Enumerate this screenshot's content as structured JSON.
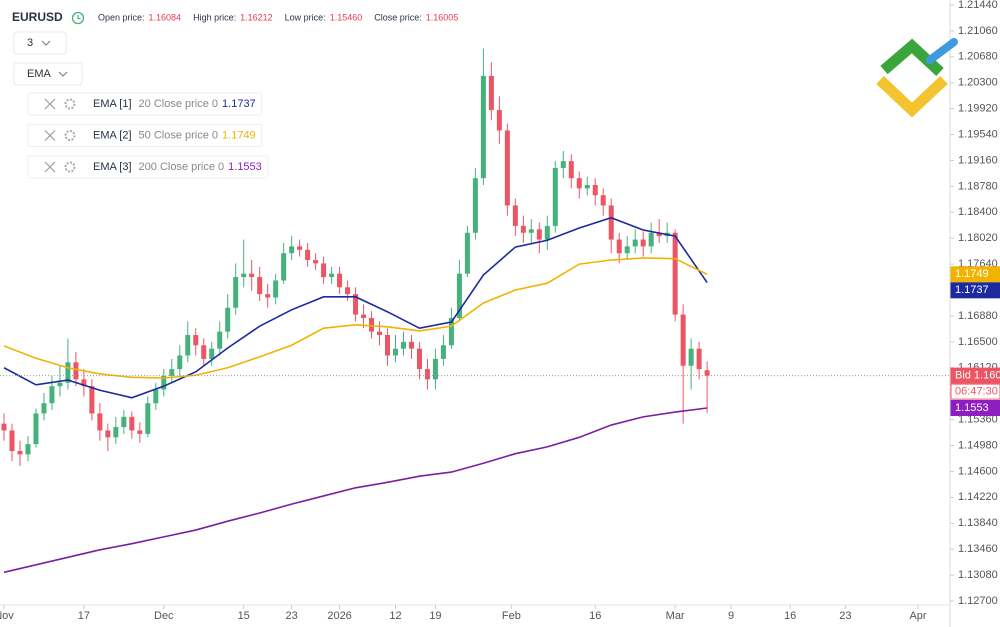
{
  "header": {
    "symbol": "EURUSD",
    "items": [
      {
        "label": "Open price:",
        "value": "1.16084"
      },
      {
        "label": "High price:",
        "value": "1.16212"
      },
      {
        "label": "Low price:",
        "value": "1.15460"
      },
      {
        "label": "Close price:",
        "value": "1.16005"
      }
    ]
  },
  "controls": {
    "interval": "3",
    "indicator": "EMA"
  },
  "chart_data": {
    "type": "candlestick",
    "up_color": "#45b27c",
    "down_color": "#ec5564",
    "xlim": [
      -0.5,
      118.4
    ],
    "ylim": [
      1.12641,
      1.21513
    ],
    "grid": false,
    "xticks": [
      {
        "value": 0,
        "label": "Nov"
      },
      {
        "value": 10,
        "label": "17"
      },
      {
        "value": 20,
        "label": "Dec"
      },
      {
        "value": 30,
        "label": "15"
      },
      {
        "value": 36,
        "label": "23"
      },
      {
        "value": 42,
        "label": "2026"
      },
      {
        "value": 49,
        "label": "12"
      },
      {
        "value": 54,
        "label": "19"
      },
      {
        "value": 63.5,
        "label": "Feb"
      },
      {
        "value": 74,
        "label": "16"
      },
      {
        "value": 84,
        "label": "Mar"
      },
      {
        "value": 91,
        "label": "9"
      },
      {
        "value": 98.4,
        "label": "16"
      },
      {
        "value": 105.3,
        "label": "23"
      },
      {
        "value": 114.4,
        "label": "Apr"
      }
    ],
    "yticks": [
      {
        "value": 1.2144,
        "label": "1.21440"
      },
      {
        "value": 1.2106,
        "label": "1.21060"
      },
      {
        "value": 1.2068,
        "label": "1.20680"
      },
      {
        "value": 1.203,
        "label": "1.20300"
      },
      {
        "value": 1.1992,
        "label": "1.19920"
      },
      {
        "value": 1.1954,
        "label": "1.19540"
      },
      {
        "value": 1.1916,
        "label": "1.19160"
      },
      {
        "value": 1.1878,
        "label": "1.18780"
      },
      {
        "value": 1.184,
        "label": "1.18400"
      },
      {
        "value": 1.1802,
        "label": "1.18020"
      },
      {
        "value": 1.1764,
        "label": "1.17640"
      },
      {
        "value": 1.1726,
        "label": "1.17260"
      },
      {
        "value": 1.1688,
        "label": "1.16880"
      },
      {
        "value": 1.165,
        "label": "1.16500"
      },
      {
        "value": 1.1612,
        "label": "1.16120"
      },
      {
        "value": 1.1574,
        "label": "1.15740"
      },
      {
        "value": 1.1536,
        "label": "1.15360"
      },
      {
        "value": 1.1498,
        "label": "1.14980"
      },
      {
        "value": 1.146,
        "label": "1.14600"
      },
      {
        "value": 1.1422,
        "label": "1.14220"
      },
      {
        "value": 1.1384,
        "label": "1.13840"
      },
      {
        "value": 1.1346,
        "label": "1.13460"
      },
      {
        "value": 1.1308,
        "label": "1.13080"
      },
      {
        "value": 1.127,
        "label": "1.12700"
      }
    ],
    "open": [
      1.153,
      1.152,
      1.149,
      1.1485,
      1.15,
      1.1545,
      1.156,
      1.1585,
      1.159,
      1.162,
      1.1595,
      1.1585,
      1.1545,
      1.152,
      1.151,
      1.1525,
      1.154,
      1.152,
      1.1515,
      1.156,
      1.158,
      1.16,
      1.161,
      1.163,
      1.166,
      1.1645,
      1.1625,
      1.164,
      1.1665,
      1.17,
      1.1745,
      1.175,
      1.1745,
      1.172,
      1.1715,
      1.174,
      1.178,
      1.179,
      1.1785,
      1.177,
      1.1765,
      1.1745,
      1.175,
      1.173,
      1.172,
      1.169,
      1.1685,
      1.1665,
      1.166,
      1.163,
      1.164,
      1.165,
      1.164,
      1.161,
      1.1595,
      1.1625,
      1.1645,
      1.1685,
      1.175,
      1.181,
      1.189,
      1.204,
      1.199,
      1.196,
      1.185,
      1.182,
      1.181,
      1.1815,
      1.18,
      1.182,
      1.1905,
      1.1915,
      1.189,
      1.1875,
      1.188,
      1.1865,
      1.185,
      1.18,
      1.178,
      1.179,
      1.18,
      1.179,
      1.181,
      1.1805,
      1.181,
      1.169,
      1.1615,
      1.164,
      1.16084
    ],
    "high": [
      1.1545,
      1.153,
      1.1505,
      1.1512,
      1.1552,
      1.1575,
      1.16,
      1.1615,
      1.1655,
      1.1635,
      1.161,
      1.1595,
      1.156,
      1.153,
      1.154,
      1.155,
      1.1548,
      1.1532,
      1.157,
      1.159,
      1.161,
      1.1625,
      1.1645,
      1.168,
      1.167,
      1.1655,
      1.165,
      1.168,
      1.172,
      1.1765,
      1.18,
      1.177,
      1.176,
      1.1735,
      1.175,
      1.1795,
      1.1805,
      1.18,
      1.1795,
      1.178,
      1.1775,
      1.176,
      1.176,
      1.174,
      1.173,
      1.1705,
      1.1695,
      1.168,
      1.167,
      1.166,
      1.1665,
      1.166,
      1.165,
      1.1625,
      1.164,
      1.166,
      1.17,
      1.177,
      1.182,
      1.1905,
      1.208,
      1.206,
      1.201,
      1.197,
      1.186,
      1.1835,
      1.183,
      1.1825,
      1.1835,
      1.1915,
      1.193,
      1.1925,
      1.19,
      1.1892,
      1.189,
      1.1875,
      1.186,
      1.181,
      1.1805,
      1.1815,
      1.1812,
      1.1825,
      1.183,
      1.1825,
      1.1815,
      1.1705,
      1.1655,
      1.165,
      1.16212
    ],
    "low": [
      1.1505,
      1.1475,
      1.1468,
      1.1475,
      1.1495,
      1.1535,
      1.155,
      1.157,
      1.158,
      1.1585,
      1.157,
      1.1535,
      1.1505,
      1.149,
      1.15,
      1.1515,
      1.1508,
      1.1502,
      1.151,
      1.155,
      1.157,
      1.159,
      1.16,
      1.162,
      1.163,
      1.1615,
      1.1615,
      1.163,
      1.1655,
      1.169,
      1.173,
      1.1725,
      1.171,
      1.17,
      1.1705,
      1.1735,
      1.177,
      1.1775,
      1.176,
      1.1755,
      1.1735,
      1.1735,
      1.172,
      1.171,
      1.168,
      1.167,
      1.1655,
      1.1645,
      1.1615,
      1.162,
      1.163,
      1.1625,
      1.1595,
      1.158,
      1.158,
      1.1615,
      1.164,
      1.168,
      1.1745,
      1.18,
      1.188,
      1.1975,
      1.194,
      1.1835,
      1.1805,
      1.1795,
      1.1795,
      1.178,
      1.1785,
      1.181,
      1.189,
      1.1875,
      1.186,
      1.1865,
      1.185,
      1.1835,
      1.178,
      1.1765,
      1.177,
      1.178,
      1.1775,
      1.178,
      1.1795,
      1.1795,
      1.168,
      1.153,
      1.158,
      1.1595,
      1.1546
    ],
    "close": [
      1.152,
      1.149,
      1.1485,
      1.15,
      1.1545,
      1.156,
      1.1585,
      1.159,
      1.162,
      1.1595,
      1.1585,
      1.1545,
      1.152,
      1.151,
      1.1525,
      1.154,
      1.152,
      1.1515,
      1.156,
      1.158,
      1.16,
      1.161,
      1.163,
      1.166,
      1.1645,
      1.1625,
      1.164,
      1.1665,
      1.17,
      1.1745,
      1.175,
      1.1745,
      1.172,
      1.1715,
      1.174,
      1.178,
      1.179,
      1.1785,
      1.177,
      1.1765,
      1.1745,
      1.175,
      1.173,
      1.172,
      1.169,
      1.1685,
      1.1665,
      1.166,
      1.163,
      1.164,
      1.165,
      1.164,
      1.161,
      1.1595,
      1.1625,
      1.1645,
      1.1685,
      1.175,
      1.181,
      1.189,
      1.204,
      1.199,
      1.196,
      1.185,
      1.182,
      1.181,
      1.1815,
      1.18,
      1.182,
      1.1905,
      1.1915,
      1.189,
      1.1875,
      1.188,
      1.1865,
      1.185,
      1.18,
      1.178,
      1.179,
      1.18,
      1.179,
      1.181,
      1.1805,
      1.181,
      1.169,
      1.1615,
      1.164,
      1.161,
      1.16005
    ],
    "bid_label": "Bid",
    "timer": "06:47:30",
    "ema_x": [
      0,
      4,
      8,
      12,
      16,
      20,
      24,
      28,
      32,
      36,
      40,
      44,
      48,
      52,
      56,
      60,
      64,
      68,
      72,
      76,
      80,
      84,
      88
    ],
    "series": [
      {
        "name": "EMA [1]",
        "params": "20 Close price 0",
        "color": "#1c2a9e",
        "label_color": "#1c2a9e",
        "values": [
          1.1612,
          1.1587,
          1.1594,
          1.1579,
          1.1568,
          1.1585,
          1.1606,
          1.1641,
          1.1673,
          1.1697,
          1.1716,
          1.1716,
          1.1694,
          1.167,
          1.1679,
          1.1748,
          1.1789,
          1.1799,
          1.1817,
          1.1832,
          1.1814,
          1.1805,
          1.1737
        ]
      },
      {
        "name": "EMA [2]",
        "params": "50 Close price 0",
        "color": "#f0b400",
        "label_color": "#f0b400",
        "values": [
          1.1644,
          1.1626,
          1.1612,
          1.1603,
          1.1598,
          1.1597,
          1.1601,
          1.1612,
          1.1628,
          1.1645,
          1.167,
          1.1675,
          1.1672,
          1.1666,
          1.1673,
          1.1707,
          1.1726,
          1.1736,
          1.1764,
          1.177,
          1.1773,
          1.1772,
          1.1749
        ]
      },
      {
        "name": "EMA [3]",
        "params": "200 Close price 0",
        "color": "#7b1fa2",
        "label_color": "#8e1ec0",
        "values": [
          1.1312,
          1.1323,
          1.1334,
          1.1345,
          1.1354,
          1.1364,
          1.1374,
          1.1387,
          1.1399,
          1.1412,
          1.1424,
          1.1436,
          1.1444,
          1.1453,
          1.1459,
          1.1472,
          1.1486,
          1.1496,
          1.151,
          1.1528,
          1.154,
          1.1547,
          1.1553
        ]
      }
    ]
  }
}
